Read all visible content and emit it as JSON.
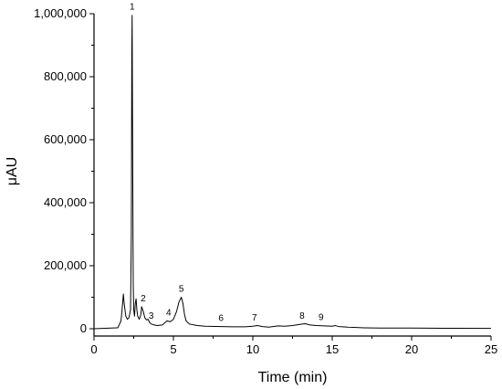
{
  "chart_data": {
    "type": "line",
    "xlabel": "Time (min)",
    "ylabel": "μAU",
    "xlim": [
      0,
      25
    ],
    "ylim": [
      0,
      1000000
    ],
    "xticks": [
      0,
      5,
      10,
      15,
      20,
      25
    ],
    "yticks": [
      0,
      200000,
      400000,
      600000,
      800000,
      1000000
    ],
    "ytick_labels": [
      "0",
      "200,000",
      "400,000",
      "600,000",
      "800,000",
      "1,000,000"
    ],
    "grid": false,
    "series": [
      {
        "x": [
          0,
          1.5,
          1.7,
          1.8,
          1.85,
          1.9,
          2.0,
          2.1,
          2.2,
          2.3,
          2.35,
          2.38,
          2.4,
          2.43,
          2.47,
          2.5,
          2.55,
          2.6,
          2.65,
          2.7,
          2.75,
          2.85,
          2.95,
          3.0,
          3.1,
          3.2,
          3.3,
          3.4,
          3.5,
          3.6,
          3.8,
          4.0,
          4.3,
          4.6,
          4.8,
          5.0,
          5.2,
          5.35,
          5.5,
          5.6,
          5.7,
          5.8,
          6.0,
          6.5,
          7.0,
          8.0,
          9.0,
          9.5,
          10.0,
          10.3,
          10.6,
          11.0,
          11.6,
          12.0,
          12.5,
          13.0,
          13.3,
          13.6,
          14.0,
          14.5,
          15.0,
          15.2,
          15.4,
          16.0,
          17.0,
          18.0,
          20.0,
          22.0,
          25.0
        ],
        "y": [
          0,
          3000,
          25000,
          80000,
          110000,
          80000,
          40000,
          30000,
          35000,
          60000,
          300000,
          880000,
          995000,
          600000,
          140000,
          60000,
          40000,
          80000,
          95000,
          60000,
          40000,
          30000,
          45000,
          70000,
          55000,
          35000,
          28000,
          30000,
          20000,
          15000,
          12000,
          10000,
          12000,
          25000,
          22000,
          30000,
          55000,
          85000,
          100000,
          80000,
          45000,
          25000,
          15000,
          10000,
          8000,
          7000,
          6000,
          6000,
          8000,
          10000,
          7000,
          5000,
          9000,
          8000,
          10000,
          14000,
          16000,
          12000,
          10000,
          9000,
          8000,
          10000,
          7000,
          5000,
          3000,
          2000,
          2000,
          1500,
          1000
        ]
      }
    ],
    "annotations": [
      {
        "text": "1",
        "x": 2.4,
        "y": 995000
      },
      {
        "text": "2",
        "x": 3.1,
        "y": 70000
      },
      {
        "text": "3",
        "x": 3.6,
        "y": 15000
      },
      {
        "text": "4",
        "x": 4.7,
        "y": 25000
      },
      {
        "text": "5",
        "x": 5.5,
        "y": 100000
      },
      {
        "text": "6",
        "x": 8.0,
        "y": 7000
      },
      {
        "text": "7",
        "x": 10.1,
        "y": 9000
      },
      {
        "text": "8",
        "x": 13.1,
        "y": 15000
      },
      {
        "text": "9",
        "x": 14.3,
        "y": 10000
      }
    ]
  }
}
